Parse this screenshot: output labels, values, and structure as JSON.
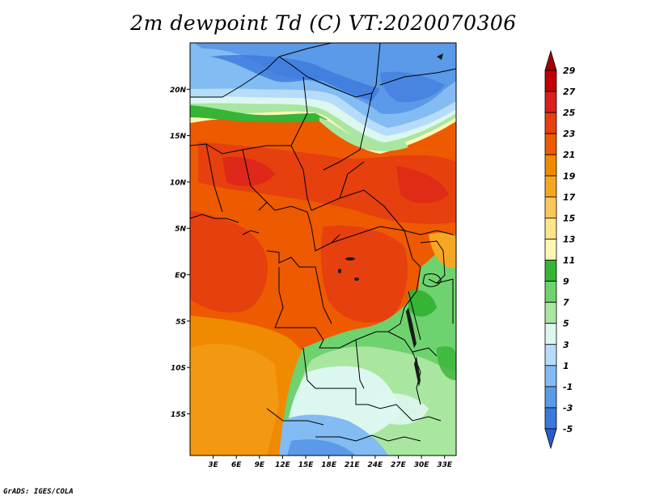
{
  "title": "2m dewpoint Td (C) VT:2020070306",
  "credit": "GrADS: IGES/COLA",
  "map": {
    "lat_labels": [
      "20N",
      "15N",
      "10N",
      "5N",
      "EQ",
      "5S",
      "10S",
      "15S"
    ],
    "lat_values": [
      20,
      15,
      10,
      5,
      0,
      -5,
      -10,
      -15
    ],
    "lon_labels": [
      "3E",
      "6E",
      "9E",
      "12E",
      "15E",
      "18E",
      "21E",
      "24E",
      "27E",
      "30E",
      "33E"
    ],
    "lon_values": [
      3,
      6,
      9,
      12,
      15,
      18,
      21,
      24,
      27,
      30,
      33
    ],
    "lon_range": [
      0,
      34.5
    ],
    "lat_range": [
      -19.5,
      25
    ]
  },
  "colorbar": {
    "labels": [
      "29",
      "27",
      "25",
      "23",
      "21",
      "19",
      "17",
      "15",
      "13",
      "11",
      "9",
      "7",
      "5",
      "3",
      "1",
      "-1",
      "-3",
      "-5"
    ],
    "colors": [
      "#a00000",
      "#c00000",
      "#dc1e1e",
      "#e6400e",
      "#ee5a00",
      "#f08a00",
      "#f5a623",
      "#fac85a",
      "#fde589",
      "#fdf6b5",
      "#36b436",
      "#6ed26e",
      "#a9e6a0",
      "#dcf7f0",
      "#b6dcfa",
      "#82bcf2",
      "#5a9ae8",
      "#3c78dc",
      "#2a5ccc"
    ]
  }
}
